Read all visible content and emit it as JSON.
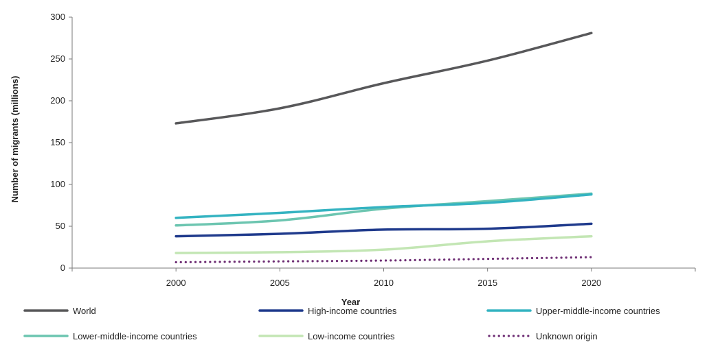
{
  "chart_data": {
    "type": "line",
    "title": "",
    "xlabel": "Year",
    "ylabel": "Number of migrants (millions)",
    "x": [
      2000,
      2005,
      2010,
      2015,
      2020
    ],
    "xlim": [
      1995,
      2025
    ],
    "ylim": [
      0,
      300
    ],
    "yticks": [
      "0",
      "50",
      "100",
      "150",
      "200",
      "250",
      "300"
    ],
    "xticks": [
      "2000",
      "2005",
      "2010",
      "2015",
      "2020"
    ],
    "grid": false,
    "legend_position": "bottom",
    "series": [
      {
        "name": "World",
        "values": [
          173,
          191,
          221,
          248,
          281
        ],
        "color": "#58585a",
        "style": "solid"
      },
      {
        "name": "High-income countries",
        "values": [
          38,
          41,
          46,
          47,
          53
        ],
        "color": "#1f3a8c",
        "style": "solid"
      },
      {
        "name": "Upper-middle-income countries",
        "values": [
          60,
          66,
          73,
          78,
          88
        ],
        "color": "#34b3c1",
        "style": "solid"
      },
      {
        "name": "Lower-middle-income countries",
        "values": [
          51,
          57,
          71,
          80,
          89
        ],
        "color": "#6cc5b0",
        "style": "solid"
      },
      {
        "name": "Low-income countries",
        "values": [
          18,
          19,
          22,
          32,
          38
        ],
        "color": "#c3e6b4",
        "style": "solid"
      },
      {
        "name": "Unknown origin",
        "values": [
          7,
          8,
          9,
          11,
          13
        ],
        "color": "#6d2c73",
        "style": "dotted"
      }
    ]
  }
}
